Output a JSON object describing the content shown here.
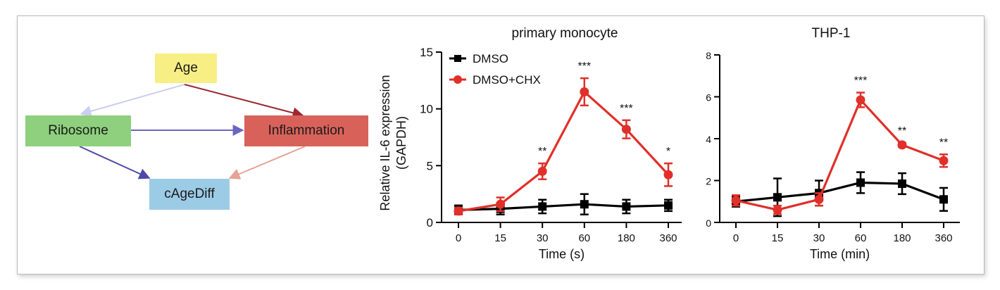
{
  "diagram": {
    "nodes": {
      "age": {
        "label": "Age",
        "color": "#f7ef84"
      },
      "ribosome": {
        "label": "Ribosome",
        "color": "#8ed07d"
      },
      "inflammation": {
        "label": "Inflammation",
        "color": "#d8625a"
      },
      "cagediff": {
        "label": "cAgeDiff",
        "color": "#9ccbe6"
      }
    },
    "edges": [
      {
        "from": "age",
        "to": "ribosome",
        "color": "#c9cfee"
      },
      {
        "from": "age",
        "to": "inflammation",
        "color": "#9b2830"
      },
      {
        "from": "ribosome",
        "to": "inflammation",
        "color": "#6a66c0"
      },
      {
        "from": "ribosome",
        "to": "cagediff",
        "color": "#4e4aa8"
      },
      {
        "from": "inflammation",
        "to": "cagediff",
        "color": "#e4a395"
      }
    ]
  },
  "chart_data": [
    {
      "type": "line",
      "title": "primary monocyte",
      "xlabel": "Time (s)",
      "ylabel": "Relative IL-6 expression (GAPDH)",
      "categories": [
        "0",
        "15",
        "30",
        "60",
        "180",
        "360"
      ],
      "ylim": [
        0,
        15
      ],
      "yticks": [
        0,
        5,
        10,
        15
      ],
      "legend": "top-left",
      "series": [
        {
          "name": "DMSO",
          "color": "#000000",
          "marker": "square",
          "values": [
            1.1,
            1.2,
            1.4,
            1.6,
            1.4,
            1.5
          ],
          "errors": [
            0.4,
            0.5,
            0.6,
            0.9,
            0.6,
            0.5
          ]
        },
        {
          "name": "DMSO+CHX",
          "color": "#e0302a",
          "marker": "circle",
          "values": [
            1.0,
            1.6,
            4.5,
            11.5,
            8.2,
            4.2
          ],
          "errors": [
            0.3,
            0.6,
            0.7,
            1.2,
            0.8,
            1.0
          ]
        }
      ],
      "annotations": [
        "",
        "",
        "**",
        "***",
        "***",
        "*"
      ]
    },
    {
      "type": "line",
      "title": "THP-1",
      "xlabel": "Time (min)",
      "ylabel": "",
      "categories": [
        "0",
        "15",
        "30",
        "60",
        "180",
        "360"
      ],
      "ylim": [
        0,
        8
      ],
      "yticks": [
        0,
        2,
        4,
        6,
        8
      ],
      "series": [
        {
          "name": "DMSO",
          "color": "#000000",
          "marker": "square",
          "values": [
            1.0,
            1.2,
            1.4,
            1.9,
            1.85,
            1.1
          ],
          "errors": [
            0.25,
            0.9,
            0.6,
            0.5,
            0.5,
            0.55
          ]
        },
        {
          "name": "DMSO+CHX",
          "color": "#e0302a",
          "marker": "circle",
          "values": [
            1.05,
            0.6,
            1.1,
            5.85,
            3.7,
            2.95
          ],
          "errors": [
            0.25,
            0.2,
            0.3,
            0.35,
            0.1,
            0.3
          ]
        }
      ],
      "annotations": [
        "",
        "",
        "",
        "***",
        "**",
        "**"
      ]
    }
  ]
}
